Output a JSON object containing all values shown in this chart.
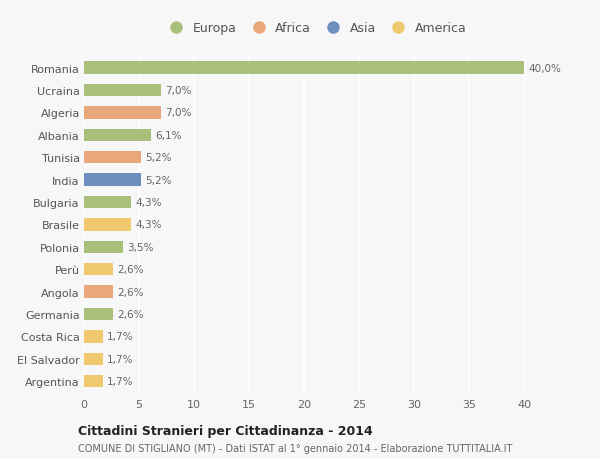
{
  "countries": [
    "Romania",
    "Ucraina",
    "Algeria",
    "Albania",
    "Tunisia",
    "India",
    "Bulgaria",
    "Brasile",
    "Polonia",
    "Perù",
    "Angola",
    "Germania",
    "Costa Rica",
    "El Salvador",
    "Argentina"
  ],
  "values": [
    40.0,
    7.0,
    7.0,
    6.1,
    5.2,
    5.2,
    4.3,
    4.3,
    3.5,
    2.6,
    2.6,
    2.6,
    1.7,
    1.7,
    1.7
  ],
  "labels": [
    "40,0%",
    "7,0%",
    "7,0%",
    "6,1%",
    "5,2%",
    "5,2%",
    "4,3%",
    "4,3%",
    "3,5%",
    "2,6%",
    "2,6%",
    "2,6%",
    "1,7%",
    "1,7%",
    "1,7%"
  ],
  "continents": [
    "Europa",
    "Europa",
    "Africa",
    "Europa",
    "Africa",
    "Asia",
    "Europa",
    "America",
    "Europa",
    "America",
    "Africa",
    "Europa",
    "America",
    "America",
    "America"
  ],
  "colors": {
    "Europa": "#a8c07a",
    "Africa": "#e8a87c",
    "Asia": "#6b8fbe",
    "America": "#f0c96e"
  },
  "xlim": [
    0,
    42
  ],
  "xticks": [
    0,
    5,
    10,
    15,
    20,
    25,
    30,
    35,
    40
  ],
  "title": "Cittadini Stranieri per Cittadinanza - 2014",
  "subtitle": "COMUNE DI STIGLIANO (MT) - Dati ISTAT al 1° gennaio 2014 - Elaborazione TUTTITALIA.IT",
  "bg_color": "#f7f7f7",
  "plot_bg_color": "#f7f7f7",
  "bar_height": 0.55,
  "grid_color": "#ffffff",
  "label_fontsize": 7.5,
  "ytick_fontsize": 8,
  "xtick_fontsize": 8,
  "legend_order": [
    "Europa",
    "Africa",
    "Asia",
    "America"
  ]
}
